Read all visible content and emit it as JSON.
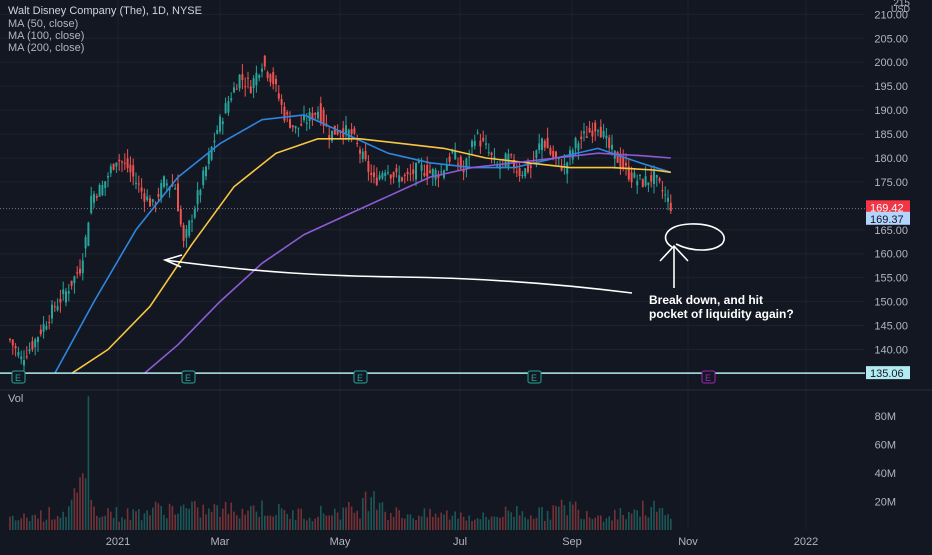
{
  "legend": {
    "title": "Walt Disney Company (The), 1D, NYSE",
    "studies": [
      "MA (50, close)",
      "MA (100, close)",
      "MA (200, close)"
    ]
  },
  "price_axis": {
    "unit": "USD",
    "ticks": [
      "210.00",
      "205.00",
      "200.00",
      "195.00",
      "190.00",
      "185.00",
      "180.00",
      "175.00",
      "165.00",
      "160.00",
      "155.00",
      "150.00",
      "145.00",
      "140.00"
    ],
    "last_price": "169.42",
    "ma_value": "169.37",
    "line_price": "135.06"
  },
  "volume_axis": {
    "label": "Vol",
    "ticks": [
      "80M",
      "60M",
      "40M",
      "20M"
    ]
  },
  "time_axis": {
    "ticks": [
      "2021",
      "Mar",
      "May",
      "Jul",
      "Sep",
      "Nov",
      "2022"
    ]
  },
  "earnings_markers": [
    "E",
    "E",
    "E",
    "E",
    "E"
  ],
  "annotation": {
    "line1": "Break down, and hit",
    "line2": "pocket of liquidity again?"
  },
  "colors": {
    "background": "#131722",
    "up": "#26a69a",
    "down": "#ef5350",
    "ma50": "#2e86de",
    "ma100": "#f9c642",
    "ma200": "#8e5bd6",
    "price_line": "#b2ebf2",
    "last_price_bg": "#f23645",
    "ma_label_bg": "#b3d4fc"
  },
  "chart_data": {
    "type": "candlestick",
    "title": "Walt Disney Company (The), 1D, NYSE",
    "ylim": [
      133,
      213
    ],
    "volume_ylim": [
      0,
      97
    ],
    "x_ticks": [
      "2021",
      "Mar",
      "May",
      "Jul",
      "Sep",
      "Nov",
      "2022"
    ],
    "key_prices": {
      "last": 169.42,
      "ma_label": 169.37,
      "horizontal_line": 135.06
    },
    "price_path": [
      [
        0,
        142
      ],
      [
        4,
        138
      ],
      [
        8,
        141
      ],
      [
        12,
        145
      ],
      [
        16,
        149
      ],
      [
        20,
        152
      ],
      [
        23,
        155
      ],
      [
        25,
        157
      ],
      [
        27,
        163
      ],
      [
        29,
        172
      ],
      [
        33,
        174
      ],
      [
        38,
        180
      ],
      [
        42,
        178
      ],
      [
        47,
        173
      ],
      [
        51,
        170
      ],
      [
        55,
        175
      ],
      [
        59,
        174
      ],
      [
        62,
        162
      ],
      [
        66,
        170
      ],
      [
        70,
        178
      ],
      [
        74,
        186
      ],
      [
        78,
        192
      ],
      [
        82,
        197
      ],
      [
        86,
        195
      ],
      [
        90,
        200
      ],
      [
        94,
        196
      ],
      [
        98,
        189
      ],
      [
        102,
        186
      ],
      [
        106,
        188
      ],
      [
        110,
        190
      ],
      [
        114,
        185
      ],
      [
        118,
        186
      ],
      [
        122,
        185
      ],
      [
        126,
        180
      ],
      [
        130,
        175
      ],
      [
        134,
        178
      ],
      [
        138,
        176
      ],
      [
        142,
        176
      ],
      [
        146,
        178
      ],
      [
        150,
        177
      ],
      [
        154,
        177
      ],
      [
        158,
        181
      ],
      [
        162,
        177
      ],
      [
        166,
        185
      ],
      [
        170,
        182
      ],
      [
        174,
        178
      ],
      [
        178,
        180
      ],
      [
        182,
        177
      ],
      [
        186,
        178
      ],
      [
        190,
        184
      ],
      [
        194,
        180
      ],
      [
        198,
        178
      ],
      [
        202,
        183
      ],
      [
        206,
        185
      ],
      [
        210,
        187
      ],
      [
        214,
        182
      ],
      [
        218,
        179
      ],
      [
        222,
        176
      ],
      [
        226,
        175
      ],
      [
        230,
        176
      ],
      [
        234,
        172
      ],
      [
        236,
        170
      ]
    ],
    "series": [
      {
        "name": "MA (50, close)",
        "color": "#2e86de",
        "points": [
          [
            16,
            135
          ],
          [
            30,
            150
          ],
          [
            45,
            165
          ],
          [
            60,
            176
          ],
          [
            75,
            183
          ],
          [
            90,
            188
          ],
          [
            105,
            189
          ],
          [
            120,
            185
          ],
          [
            135,
            181
          ],
          [
            150,
            179
          ],
          [
            165,
            178
          ],
          [
            180,
            178
          ],
          [
            195,
            180
          ],
          [
            210,
            182
          ],
          [
            225,
            179
          ],
          [
            236,
            177
          ]
        ]
      },
      {
        "name": "MA (100, close)",
        "color": "#f9c642",
        "points": [
          [
            22,
            135
          ],
          [
            35,
            140
          ],
          [
            50,
            149
          ],
          [
            65,
            162
          ],
          [
            80,
            174
          ],
          [
            95,
            181
          ],
          [
            110,
            184
          ],
          [
            125,
            184
          ],
          [
            140,
            183
          ],
          [
            155,
            182
          ],
          [
            170,
            180
          ],
          [
            185,
            179
          ],
          [
            200,
            178
          ],
          [
            215,
            178
          ],
          [
            230,
            177.5
          ],
          [
            236,
            177
          ]
        ]
      },
      {
        "name": "MA (200, close)",
        "color": "#8e5bd6",
        "points": [
          [
            48,
            135
          ],
          [
            60,
            141
          ],
          [
            75,
            150
          ],
          [
            90,
            158
          ],
          [
            105,
            164
          ],
          [
            120,
            168
          ],
          [
            135,
            172
          ],
          [
            150,
            176
          ],
          [
            165,
            178
          ],
          [
            180,
            179
          ],
          [
            195,
            180
          ],
          [
            210,
            181
          ],
          [
            225,
            180.5
          ],
          [
            236,
            180
          ]
        ]
      }
    ],
    "volume": [
      [
        0,
        8
      ],
      [
        10,
        12
      ],
      [
        20,
        15
      ],
      [
        27,
        36
      ],
      [
        28,
        94
      ],
      [
        29,
        20
      ],
      [
        40,
        12
      ],
      [
        55,
        18
      ],
      [
        70,
        16
      ],
      [
        90,
        18
      ],
      [
        100,
        13
      ],
      [
        110,
        14
      ],
      [
        125,
        17
      ],
      [
        130,
        36
      ],
      [
        135,
        14
      ],
      [
        150,
        12
      ],
      [
        160,
        13
      ],
      [
        170,
        10
      ],
      [
        180,
        16
      ],
      [
        190,
        13
      ],
      [
        200,
        20
      ],
      [
        210,
        12
      ],
      [
        220,
        15
      ],
      [
        230,
        18
      ],
      [
        236,
        9
      ]
    ]
  }
}
